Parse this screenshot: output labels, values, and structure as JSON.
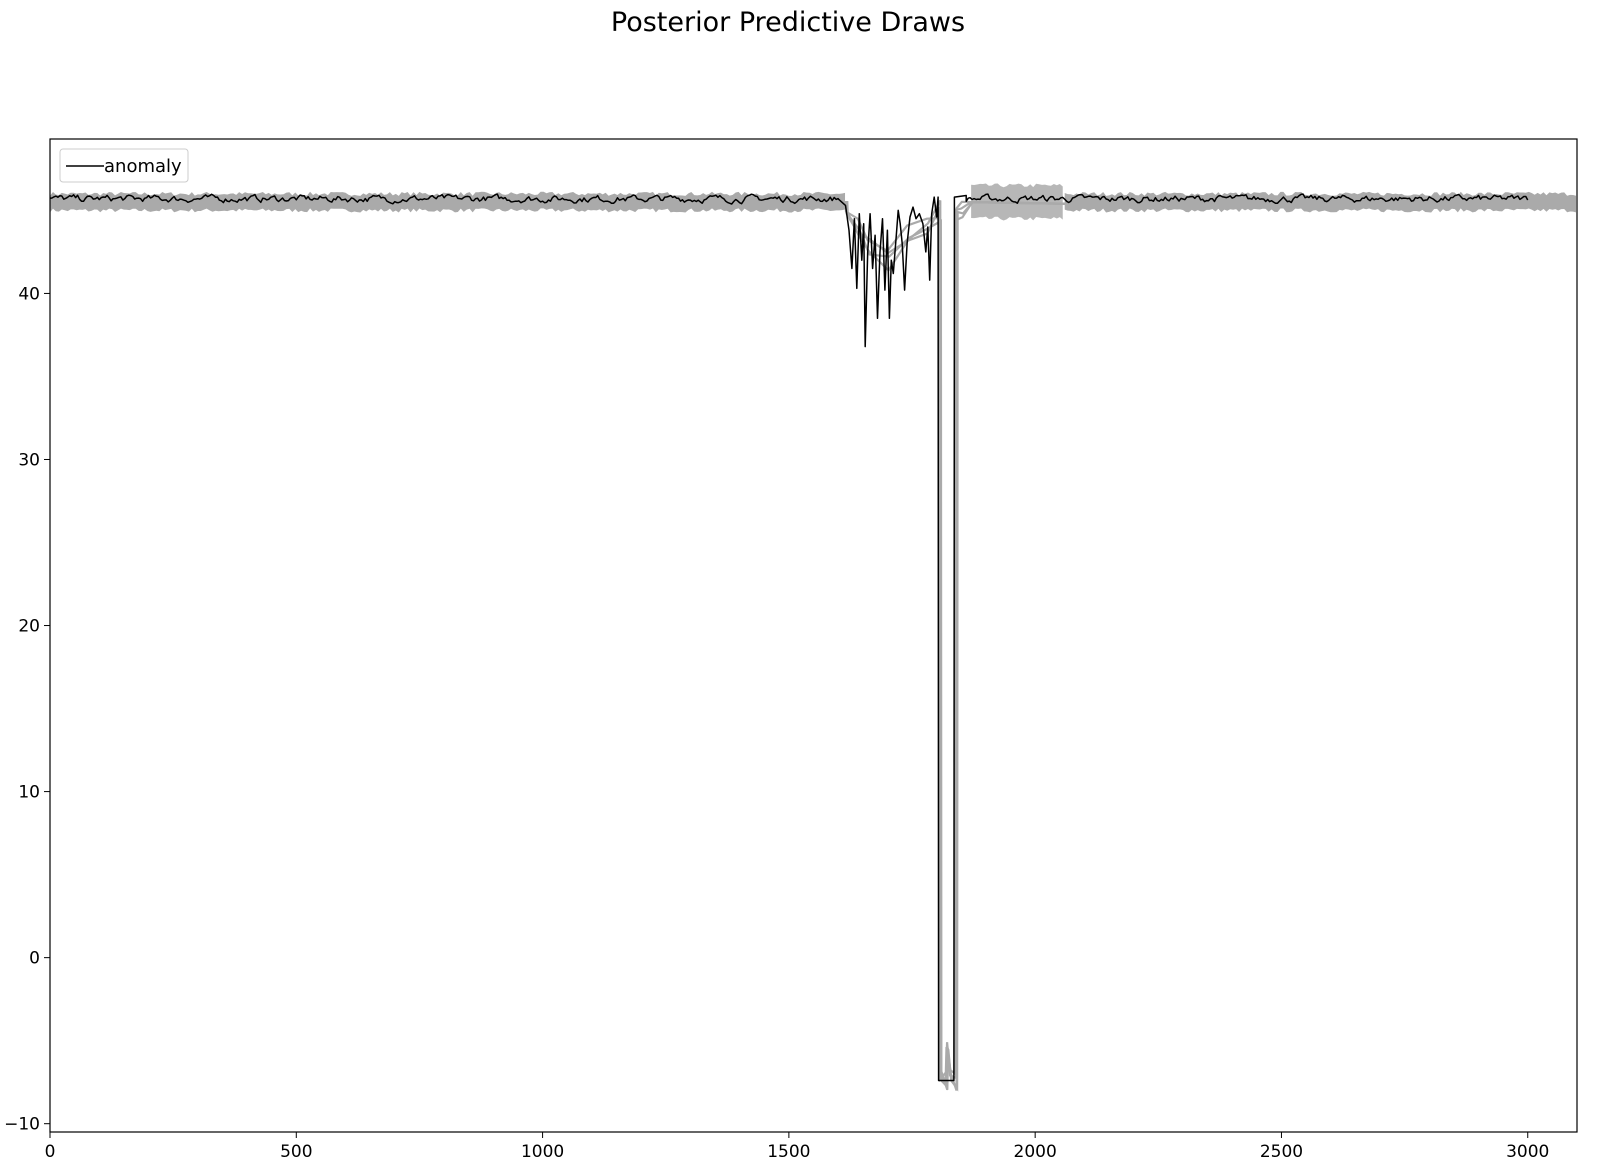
{
  "chart_data": {
    "type": "line",
    "title": "Posterior Predictive Draws",
    "xlabel": "",
    "ylabel": "",
    "xlim": [
      0,
      3100
    ],
    "ylim": [
      -10.5,
      49.3
    ],
    "x_ticks": [
      0,
      500,
      1000,
      1500,
      2000,
      2500,
      3000
    ],
    "x_tick_labels": [
      "0",
      "500",
      "1000",
      "1500",
      "2000",
      "2500",
      "3000"
    ],
    "y_ticks": [
      -10,
      0,
      10,
      20,
      30,
      40
    ],
    "y_tick_labels": [
      "−10",
      "0",
      "10",
      "20",
      "30",
      "40"
    ],
    "grid": false,
    "legend": {
      "position": "top-left",
      "entries": [
        {
          "label": "anomaly",
          "color": "#000000"
        }
      ]
    },
    "colors": {
      "observed": "#000000",
      "posterior_draws": "#aaaaaa"
    },
    "series": [
      {
        "name": "anomaly",
        "role": "observed",
        "baseline": 45.7,
        "noise": 0.15,
        "x_range": [
          0,
          3000
        ],
        "points": [
          [
            1600,
            45.7
          ],
          [
            1615,
            45.3
          ],
          [
            1622,
            43.8
          ],
          [
            1628,
            41.5
          ],
          [
            1633,
            44.5
          ],
          [
            1638,
            40.3
          ],
          [
            1643,
            44.8
          ],
          [
            1648,
            42.0
          ],
          [
            1652,
            44.2
          ],
          [
            1655,
            36.8
          ],
          [
            1660,
            42.5
          ],
          [
            1665,
            44.8
          ],
          [
            1670,
            41.5
          ],
          [
            1675,
            43.5
          ],
          [
            1680,
            38.5
          ],
          [
            1685,
            42.5
          ],
          [
            1690,
            44.5
          ],
          [
            1695,
            40.2
          ],
          [
            1700,
            43.8
          ],
          [
            1704,
            38.5
          ],
          [
            1708,
            42.0
          ],
          [
            1712,
            41.2
          ],
          [
            1718,
            43.5
          ],
          [
            1722,
            45.0
          ],
          [
            1726,
            44.2
          ],
          [
            1730,
            43.0
          ],
          [
            1735,
            40.2
          ],
          [
            1740,
            43.0
          ],
          [
            1746,
            44.6
          ],
          [
            1752,
            45.2
          ],
          [
            1758,
            44.5
          ],
          [
            1765,
            44.8
          ],
          [
            1772,
            44.2
          ],
          [
            1778,
            42.5
          ],
          [
            1782,
            44.0
          ],
          [
            1786,
            40.8
          ],
          [
            1790,
            44.8
          ],
          [
            1795,
            45.8
          ],
          [
            1800,
            44.6
          ],
          [
            1803,
            45.8
          ],
          [
            1804,
            -7.4
          ],
          [
            1835,
            -7.4
          ],
          [
            1836,
            45.8
          ],
          [
            1860,
            45.9
          ]
        ]
      },
      {
        "name": "posterior predictive draws",
        "role": "draws",
        "baseline": 45.5,
        "band_halfwidth": 0.5,
        "x_range": [
          0,
          3100
        ],
        "points": [
          [
            1590,
            45.5
          ],
          [
            1615,
            45.5
          ],
          [
            1616,
            44.8
          ],
          [
            1640,
            44.0
          ],
          [
            1660,
            43.0
          ],
          [
            1700,
            42.0
          ],
          [
            1740,
            43.5
          ],
          [
            1780,
            44.0
          ],
          [
            1805,
            45.0
          ],
          [
            1806,
            -7.4
          ],
          [
            1818,
            -7.6
          ],
          [
            1820,
            -5.2
          ],
          [
            1826,
            -6.8
          ],
          [
            1838,
            -7.4
          ],
          [
            1839,
            45.0
          ],
          [
            1850,
            45.3
          ],
          [
            1870,
            45.5
          ],
          [
            2060,
            45.4
          ],
          [
            2080,
            45.5
          ]
        ]
      }
    ]
  }
}
